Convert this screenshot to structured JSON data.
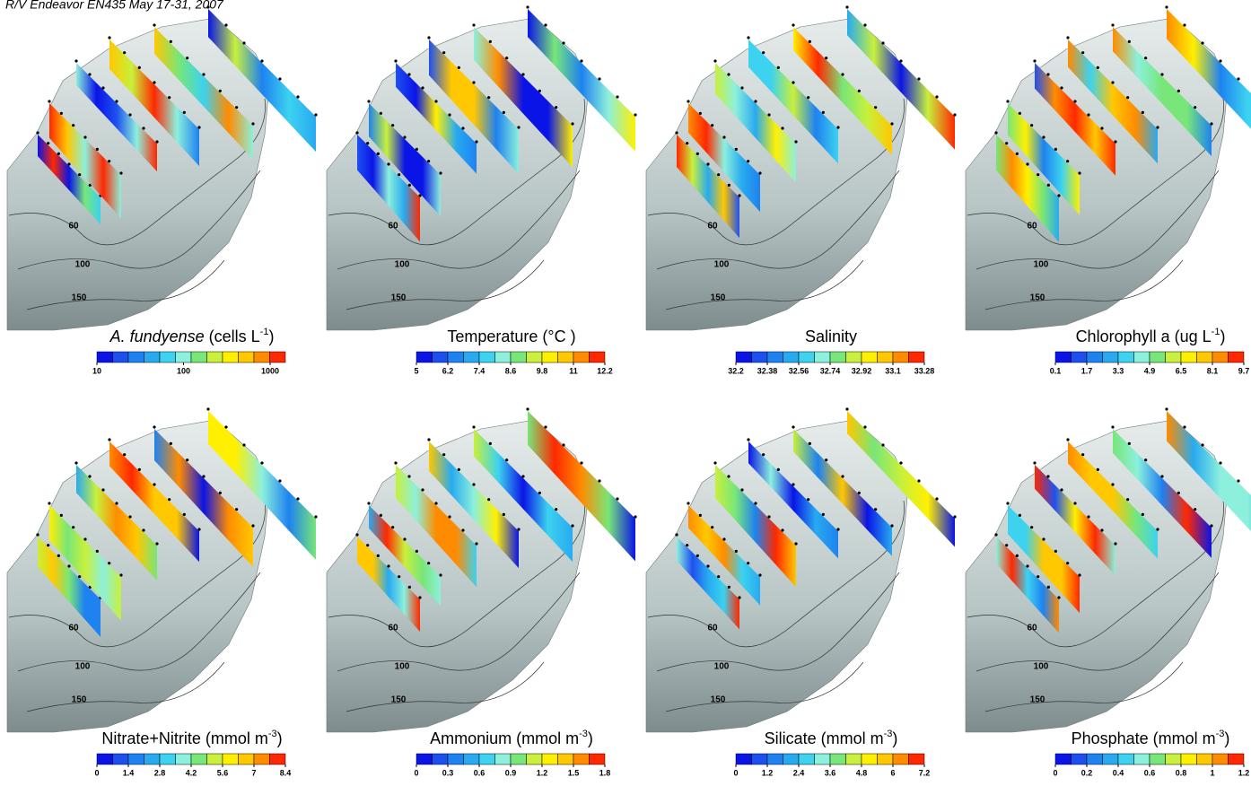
{
  "header": {
    "title": "R/V Endeavor EN435 May 17-31, 2007"
  },
  "contour_labels": [
    "60",
    "100",
    "150"
  ],
  "colorscale": [
    "#0a14e6",
    "#1e50f0",
    "#1e82f0",
    "#28aaf0",
    "#3cd2f0",
    "#8cf0dc",
    "#78e678",
    "#c8f03c",
    "#fff000",
    "#ffc800",
    "#ff8c00",
    "#ff2800"
  ],
  "panels": [
    {
      "title": [
        {
          "text": "A. fundyense",
          "style": "italic"
        },
        {
          "text": " (cells L"
        },
        {
          "text": "-1",
          "style": "sup"
        },
        {
          "text": ")"
        }
      ],
      "colorbar": {
        "log": true,
        "range": [
          10,
          1500
        ],
        "ticks": [
          10,
          100,
          1000
        ]
      }
    },
    {
      "title": [
        {
          "text": "Temperature (°C )"
        }
      ],
      "colorbar": {
        "log": false,
        "range": [
          5,
          12.2
        ],
        "ticks": [
          5,
          6.2,
          7.4,
          8.6,
          9.8,
          11,
          12.2
        ]
      }
    },
    {
      "title": [
        {
          "text": "Salinity"
        }
      ],
      "colorbar": {
        "log": false,
        "range": [
          32.2,
          33.28
        ],
        "ticks": [
          32.2,
          32.38,
          32.56,
          32.74,
          32.92,
          33.1,
          33.28
        ]
      }
    },
    {
      "title": [
        {
          "text": "Chlorophyll a (ug L"
        },
        {
          "text": "-1",
          "style": "sup"
        },
        {
          "text": ")"
        }
      ],
      "colorbar": {
        "log": false,
        "range": [
          0.1,
          9.7
        ],
        "ticks": [
          0.1,
          1.7,
          3.3,
          4.9,
          6.5,
          8.1,
          9.7
        ]
      }
    },
    {
      "title": [
        {
          "text": "Nitrate+Nitrite (mmol m"
        },
        {
          "text": "-3",
          "style": "sup"
        },
        {
          "text": ")"
        }
      ],
      "colorbar": {
        "log": false,
        "range": [
          0,
          8.4
        ],
        "ticks": [
          0,
          1.4,
          2.8,
          4.2,
          5.6,
          7,
          8.4
        ]
      }
    },
    {
      "title": [
        {
          "text": "Ammonium (mmol m"
        },
        {
          "text": "-3",
          "style": "sup"
        },
        {
          "text": ")"
        }
      ],
      "colorbar": {
        "log": false,
        "range": [
          0,
          1.8
        ],
        "ticks": [
          0,
          0.3,
          0.6,
          0.9,
          1.2,
          1.5,
          1.8
        ]
      }
    },
    {
      "title": [
        {
          "text": "Silicate (mmol m"
        },
        {
          "text": "-3",
          "style": "sup"
        },
        {
          "text": ")"
        }
      ],
      "colorbar": {
        "log": false,
        "range": [
          0,
          7.2
        ],
        "ticks": [
          0,
          1.2,
          2.4,
          3.6,
          4.8,
          6,
          7.2
        ]
      }
    },
    {
      "title": [
        {
          "text": "Phosphate (mmol m"
        },
        {
          "text": "-3",
          "style": "sup"
        },
        {
          "text": ")"
        }
      ],
      "colorbar": {
        "log": false,
        "range": [
          0,
          1.2
        ],
        "ticks": [
          0,
          0.2,
          0.4,
          0.6,
          0.8,
          1,
          1.2
        ]
      }
    }
  ]
}
